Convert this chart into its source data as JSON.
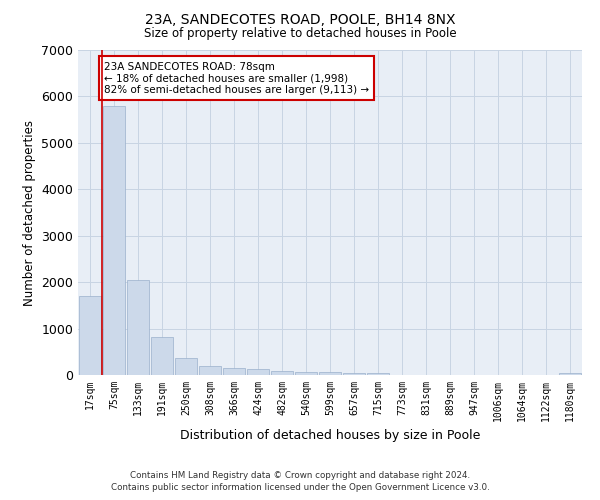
{
  "title_line1": "23A, SANDECOTES ROAD, POOLE, BH14 8NX",
  "title_line2": "Size of property relative to detached houses in Poole",
  "xlabel": "Distribution of detached houses by size in Poole",
  "ylabel": "Number of detached properties",
  "categories": [
    "17sqm",
    "75sqm",
    "133sqm",
    "191sqm",
    "250sqm",
    "308sqm",
    "366sqm",
    "424sqm",
    "482sqm",
    "540sqm",
    "599sqm",
    "657sqm",
    "715sqm",
    "773sqm",
    "831sqm",
    "889sqm",
    "947sqm",
    "1006sqm",
    "1064sqm",
    "1122sqm",
    "1180sqm"
  ],
  "values": [
    1700,
    5800,
    2050,
    820,
    360,
    200,
    160,
    120,
    80,
    60,
    55,
    50,
    45,
    0,
    0,
    0,
    0,
    0,
    0,
    0,
    45
  ],
  "bar_color": "#ccd9ea",
  "bar_edge_color": "#9ab0cc",
  "grid_color": "#c8d4e3",
  "background_color": "#e8eef6",
  "annotation_line1": "23A SANDECOTES ROAD: 78sqm",
  "annotation_line2": "← 18% of detached houses are smaller (1,998)",
  "annotation_line3": "82% of semi-detached houses are larger (9,113) →",
  "annotation_box_color": "#ffffff",
  "annotation_box_edge": "#cc0000",
  "property_line_color": "#cc0000",
  "ylim": [
    0,
    7000
  ],
  "yticks": [
    0,
    1000,
    2000,
    3000,
    4000,
    5000,
    6000,
    7000
  ],
  "footer_line1": "Contains HM Land Registry data © Crown copyright and database right 2024.",
  "footer_line2": "Contains public sector information licensed under the Open Government Licence v3.0."
}
